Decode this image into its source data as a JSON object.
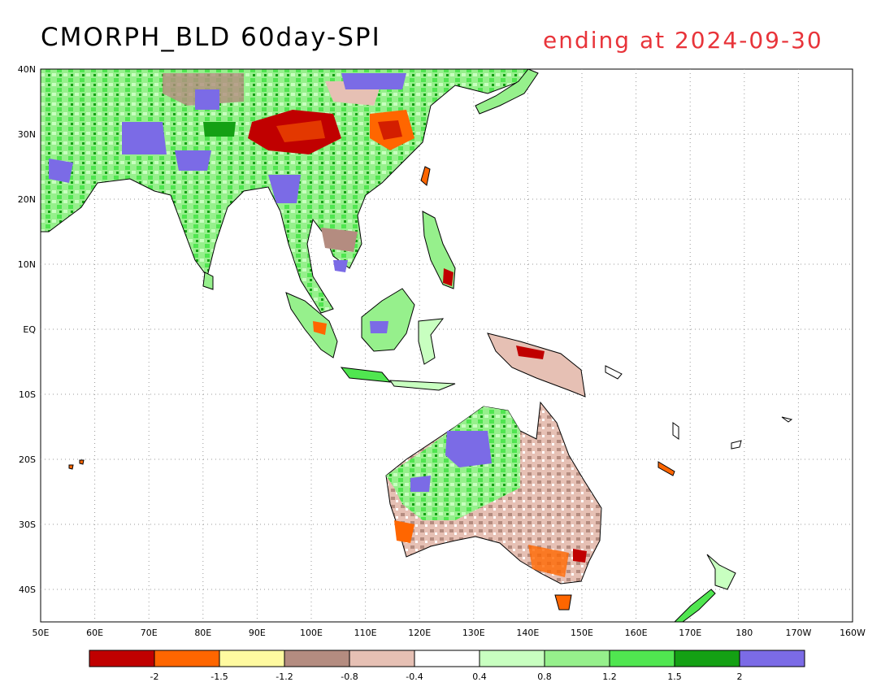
{
  "title": {
    "left": "CMORPH_BLD 60day-SPI",
    "right": "ending at 2024-09-30"
  },
  "map": {
    "lat_labels": [
      "40N",
      "30N",
      "20N",
      "10N",
      "EQ",
      "10S",
      "20S",
      "30S",
      "40S"
    ],
    "lon_labels": [
      "50E",
      "60E",
      "70E",
      "80E",
      "90E",
      "100E",
      "110E",
      "120E",
      "130E",
      "140E",
      "150E",
      "160E",
      "170E",
      "180",
      "170W",
      "160W"
    ],
    "lat_range": [
      "40N",
      "45S"
    ],
    "lon_range": [
      "50E",
      "160W"
    ],
    "grid": "dotted"
  },
  "legend": {
    "colors": [
      "#c00000",
      "#ff6600",
      "#fffaa0",
      "#b48c80",
      "#e6c0b4",
      "#ffffff",
      "#c8ffc0",
      "#96f08c",
      "#50e650",
      "#14a014",
      "#7b6be6"
    ],
    "tick_labels": [
      "-2",
      "-1.5",
      "-1.2",
      "-0.8",
      "-0.4",
      "0.4",
      "0.8",
      "1.2",
      "1.5",
      "2"
    ]
  }
}
